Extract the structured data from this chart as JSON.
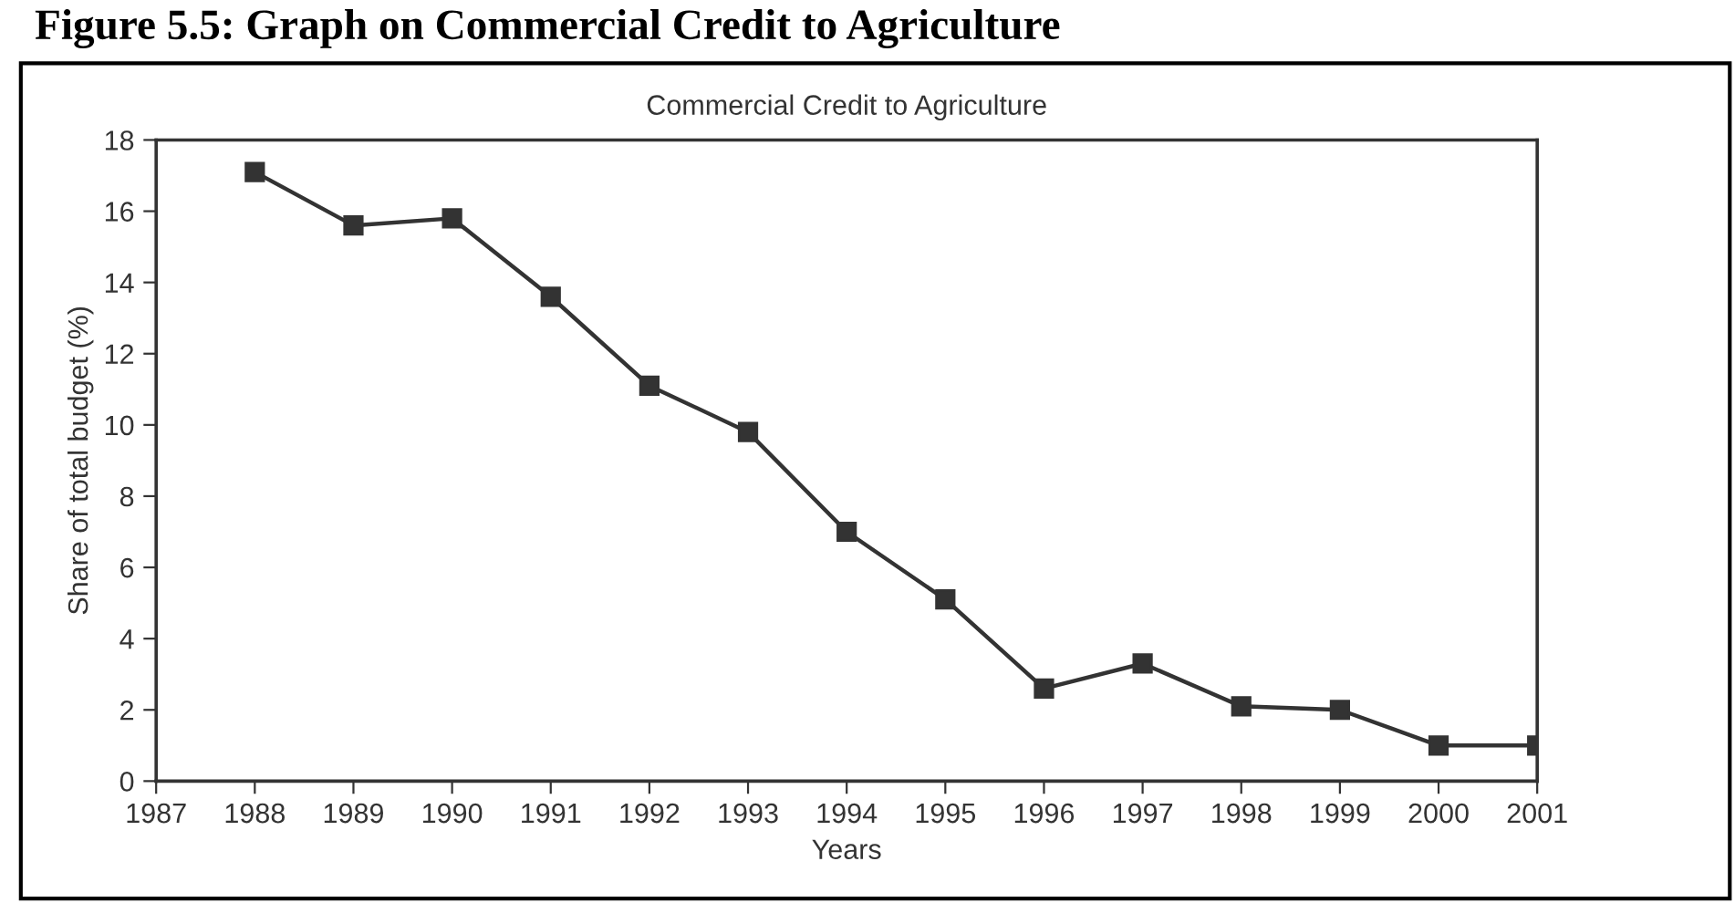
{
  "chart_data": {
    "type": "line",
    "title": "Figure 5.5: Graph on Commercial Credit to Agriculture",
    "subtitle": "Commercial Credit to Agriculture",
    "xlabel": "Years",
    "ylabel": "Share of total budget (%)",
    "x": [
      1988,
      1989,
      1990,
      1991,
      1992,
      1993,
      1994,
      1995,
      1996,
      1997,
      1998,
      1999,
      2000,
      2001
    ],
    "series": [
      {
        "color": "#333333",
        "values": [
          17.1,
          15.6,
          15.8,
          13.6,
          11.1,
          9.8,
          7.0,
          5.1,
          2.6,
          3.3,
          2.1,
          2.0,
          1.0,
          1.0
        ]
      }
    ],
    "xlim": [
      1987,
      2001
    ],
    "xticks": [
      1987,
      1988,
      1989,
      1990,
      1991,
      1992,
      1993,
      1994,
      1995,
      1996,
      1997,
      1998,
      1999,
      2000,
      2001
    ],
    "ylim": [
      0,
      18
    ],
    "yticks": [
      0,
      2,
      4,
      6,
      8,
      10,
      12,
      14,
      16,
      18
    ],
    "marker": "square",
    "line_style": "solid",
    "grid": false
  }
}
